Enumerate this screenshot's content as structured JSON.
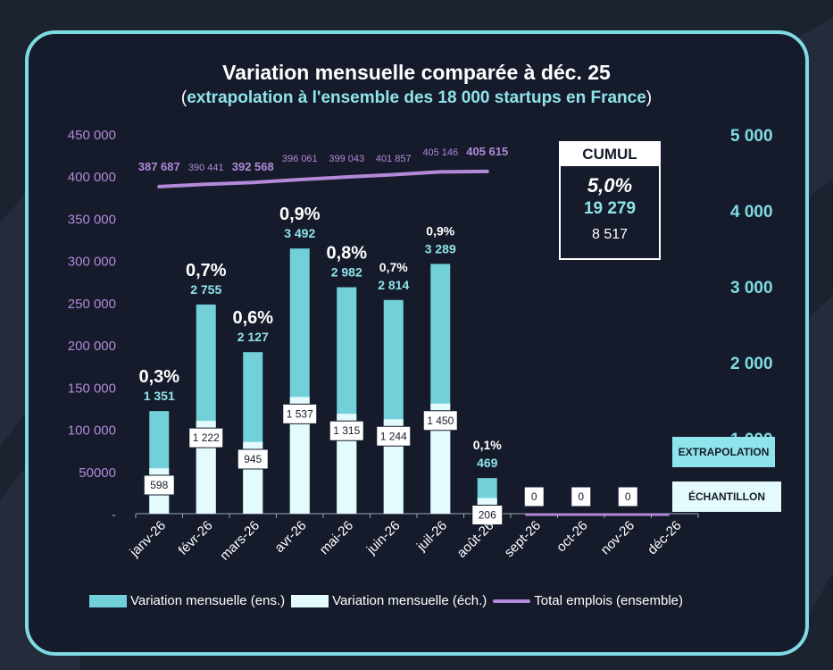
{
  "title": "Variation mensuelle comparée à déc. 25",
  "subtitle": {
    "open": "(",
    "highlight": "extrapolation à l'ensemble des 18 000 startups en France",
    "close": ")"
  },
  "cumul": {
    "header": "CUMUL",
    "percent": "5,0%",
    "extrapolation": "19 279",
    "echantillon": "8 517"
  },
  "tags": {
    "extrapolation": "EXTRAPOLATION",
    "echantillon": "ÉCHANTILLON"
  },
  "colors": {
    "background": "#1b2230",
    "card": "#151b2b",
    "border": "#7fdbe3",
    "bar_ens": "#72d0d9",
    "bar_ech": "#e3fbfd",
    "line": "#b389d9",
    "left_axis": "#b389d9",
    "right_axis": "#7fdbe3",
    "ext_label": "#8fe3ea"
  },
  "chart_data": {
    "type": "bar",
    "categories": [
      "janv-26",
      "févr-26",
      "mars-26",
      "avr-26",
      "mai-26",
      "juin-26",
      "juil-26",
      "août-26",
      "sept-26",
      "oct-26",
      "nov-26",
      "déc-26"
    ],
    "series": [
      {
        "name": "Variation mensuelle (ens.)",
        "axis": "right",
        "values": [
          1351,
          2755,
          2127,
          3492,
          2982,
          2814,
          3289,
          469,
          null,
          null,
          null,
          null
        ]
      },
      {
        "name": "Variation mensuelle (éch.)",
        "axis": "right",
        "values": [
          598,
          1222,
          945,
          1537,
          1315,
          1244,
          1450,
          206,
          0,
          0,
          0,
          null
        ]
      },
      {
        "name": "Total emplois (ensemble)",
        "axis": "left",
        "type": "line",
        "values": [
          387687,
          390441,
          392568,
          396061,
          399043,
          401857,
          405146,
          405615,
          null,
          null,
          null,
          null
        ]
      }
    ],
    "pct_labels": [
      "0,3%",
      "0,7%",
      "0,6%",
      "0,9%",
      "0,8%",
      "0,7%",
      "0,9%",
      "0,1%",
      "",
      "",
      "",
      ""
    ],
    "ens_labels": [
      "1 351",
      "2 755",
      "2 127",
      "3 492",
      "2 982",
      "2 814",
      "3 289",
      "469",
      "",
      "",
      "",
      ""
    ],
    "ech_labels": [
      "598",
      "1 222",
      "945",
      "1 537",
      "1 315",
      "1 244",
      "1 450",
      "206",
      "0",
      "0",
      "0",
      ""
    ],
    "line_labels": [
      "387 687",
      "390 441",
      "392 568",
      "396 061",
      "399 043",
      "401 857",
      "405 146",
      "405 615",
      "",
      "",
      "",
      ""
    ],
    "left_ticks": [
      "-",
      "50000",
      "100 000",
      "150 000",
      "200 000",
      "250 000",
      "300 000",
      "350 000",
      "400 000",
      "450 000"
    ],
    "right_ticks": [
      "1 000",
      "2 000",
      "3 000",
      "4 000",
      "5 000"
    ],
    "y_left_lim": [
      0,
      450000
    ],
    "y_right_lim": [
      0,
      5000
    ],
    "legend_position": "bottom"
  },
  "legend": {
    "ens": "Variation mensuelle (ens.)",
    "ech": "Variation mensuelle (éch.)",
    "line": "Total emplois (ensemble)"
  }
}
